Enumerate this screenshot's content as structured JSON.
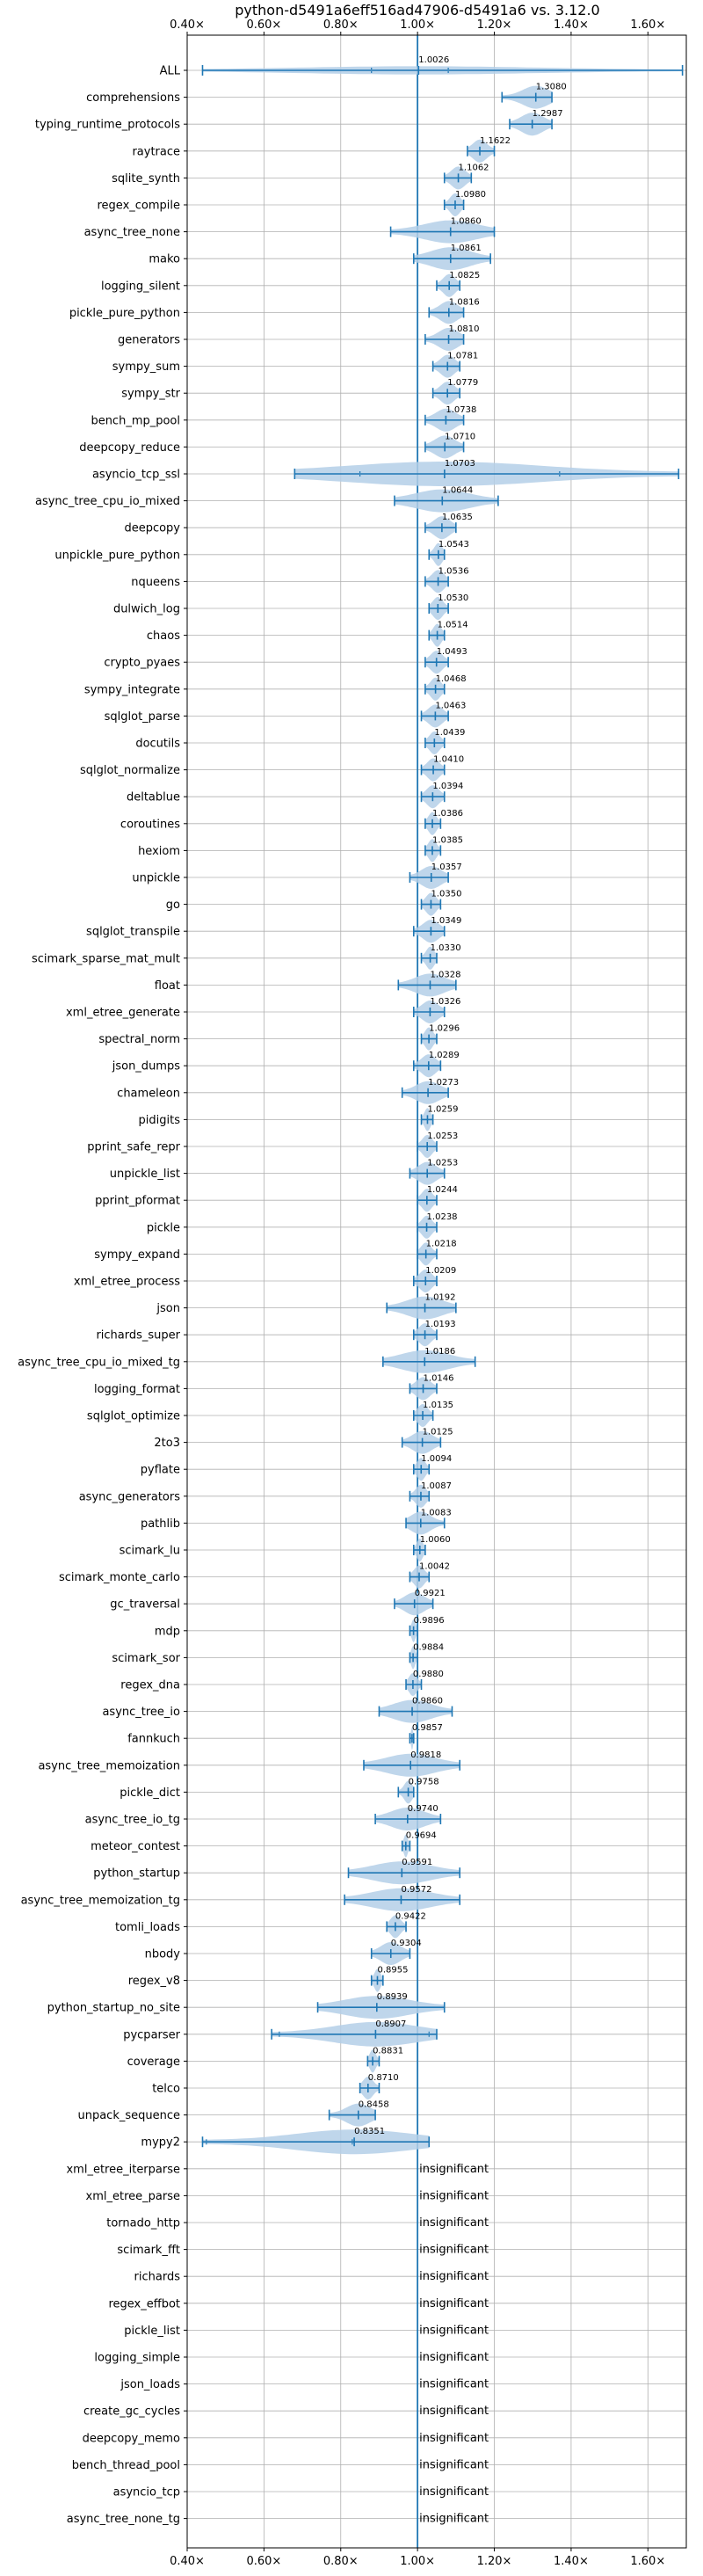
{
  "chart_data": {
    "type": "violin",
    "title": "python-d5491a6eff516ad47906-d5491a6 vs. 3.12.0",
    "xlim": [
      0.4,
      1.7
    ],
    "xticks": [
      "0.40×",
      "0.60×",
      "0.80×",
      "1.00×",
      "1.20×",
      "1.40×",
      "1.60×"
    ],
    "reference_line": 1.0,
    "grid": true,
    "colors": {
      "violin": "#b4cfe8",
      "line": "#1f77b4"
    },
    "insignificant_label": "insignificant",
    "benchmarks": [
      {
        "name": "ALL",
        "value": 1.0026,
        "label": "1.0026",
        "min": 0.44,
        "max": 1.69,
        "q1": 0.88,
        "q3": 1.08,
        "width": 0.1
      },
      {
        "name": "comprehensions",
        "value": 1.308,
        "label": "1.3080",
        "min": 1.22,
        "max": 1.35
      },
      {
        "name": "typing_runtime_protocols",
        "value": 1.2987,
        "label": "1.2987",
        "min": 1.24,
        "max": 1.35
      },
      {
        "name": "raytrace",
        "value": 1.1622,
        "label": "1.1622",
        "min": 1.13,
        "max": 1.2
      },
      {
        "name": "sqlite_synth",
        "value": 1.1062,
        "label": "1.1062",
        "min": 1.07,
        "max": 1.14
      },
      {
        "name": "regex_compile",
        "value": 1.098,
        "label": "1.0980",
        "min": 1.07,
        "max": 1.12
      },
      {
        "name": "async_tree_none",
        "value": 1.086,
        "label": "1.0860",
        "min": 0.93,
        "max": 1.2
      },
      {
        "name": "mako",
        "value": 1.0861,
        "label": "1.0861",
        "min": 0.99,
        "max": 1.19
      },
      {
        "name": "logging_silent",
        "value": 1.0825,
        "label": "1.0825",
        "min": 1.05,
        "max": 1.11
      },
      {
        "name": "pickle_pure_python",
        "value": 1.0816,
        "label": "1.0816",
        "min": 1.03,
        "max": 1.12
      },
      {
        "name": "generators",
        "value": 1.081,
        "label": "1.0810",
        "min": 1.02,
        "max": 1.12
      },
      {
        "name": "sympy_sum",
        "value": 1.0781,
        "label": "1.0781",
        "min": 1.04,
        "max": 1.11
      },
      {
        "name": "sympy_str",
        "value": 1.0779,
        "label": "1.0779",
        "min": 1.04,
        "max": 1.11
      },
      {
        "name": "bench_mp_pool",
        "value": 1.0738,
        "label": "1.0738",
        "min": 1.02,
        "max": 1.12
      },
      {
        "name": "deepcopy_reduce",
        "value": 1.071,
        "label": "1.0710",
        "min": 1.02,
        "max": 1.12
      },
      {
        "name": "asyncio_tcp_ssl",
        "value": 1.0703,
        "label": "1.0703",
        "min": 0.68,
        "max": 1.68,
        "q1": 0.85,
        "q3": 1.37,
        "width": 0.6
      },
      {
        "name": "async_tree_cpu_io_mixed",
        "value": 1.0644,
        "label": "1.0644",
        "min": 0.94,
        "max": 1.21
      },
      {
        "name": "deepcopy",
        "value": 1.0635,
        "label": "1.0635",
        "min": 1.02,
        "max": 1.1
      },
      {
        "name": "unpickle_pure_python",
        "value": 1.0543,
        "label": "1.0543",
        "min": 1.03,
        "max": 1.07
      },
      {
        "name": "nqueens",
        "value": 1.0536,
        "label": "1.0536",
        "min": 1.02,
        "max": 1.08
      },
      {
        "name": "dulwich_log",
        "value": 1.053,
        "label": "1.0530",
        "min": 1.03,
        "max": 1.08
      },
      {
        "name": "chaos",
        "value": 1.0514,
        "label": "1.0514",
        "min": 1.03,
        "max": 1.07
      },
      {
        "name": "crypto_pyaes",
        "value": 1.0493,
        "label": "1.0493",
        "min": 1.02,
        "max": 1.08
      },
      {
        "name": "sympy_integrate",
        "value": 1.0468,
        "label": "1.0468",
        "min": 1.02,
        "max": 1.07
      },
      {
        "name": "sqlglot_parse",
        "value": 1.0463,
        "label": "1.0463",
        "min": 1.01,
        "max": 1.08
      },
      {
        "name": "docutils",
        "value": 1.0439,
        "label": "1.0439",
        "min": 1.02,
        "max": 1.07
      },
      {
        "name": "sqlglot_normalize",
        "value": 1.041,
        "label": "1.0410",
        "min": 1.01,
        "max": 1.07
      },
      {
        "name": "deltablue",
        "value": 1.0394,
        "label": "1.0394",
        "min": 1.01,
        "max": 1.07
      },
      {
        "name": "coroutines",
        "value": 1.0386,
        "label": "1.0386",
        "min": 1.02,
        "max": 1.06
      },
      {
        "name": "hexiom",
        "value": 1.0385,
        "label": "1.0385",
        "min": 1.02,
        "max": 1.06
      },
      {
        "name": "unpickle",
        "value": 1.0357,
        "label": "1.0357",
        "min": 0.98,
        "max": 1.08
      },
      {
        "name": "go",
        "value": 1.035,
        "label": "1.0350",
        "min": 1.01,
        "max": 1.06
      },
      {
        "name": "sqlglot_transpile",
        "value": 1.0349,
        "label": "1.0349",
        "min": 0.99,
        "max": 1.07
      },
      {
        "name": "scimark_sparse_mat_mult",
        "value": 1.033,
        "label": "1.0330",
        "min": 1.01,
        "max": 1.05
      },
      {
        "name": "float",
        "value": 1.0328,
        "label": "1.0328",
        "min": 0.95,
        "max": 1.1
      },
      {
        "name": "xml_etree_generate",
        "value": 1.0326,
        "label": "1.0326",
        "min": 0.99,
        "max": 1.07
      },
      {
        "name": "spectral_norm",
        "value": 1.0296,
        "label": "1.0296",
        "min": 1.01,
        "max": 1.05
      },
      {
        "name": "json_dumps",
        "value": 1.0289,
        "label": "1.0289",
        "min": 0.99,
        "max": 1.06
      },
      {
        "name": "chameleon",
        "value": 1.0273,
        "label": "1.0273",
        "min": 0.96,
        "max": 1.08
      },
      {
        "name": "pidigits",
        "value": 1.0259,
        "label": "1.0259",
        "min": 1.01,
        "max": 1.04
      },
      {
        "name": "pprint_safe_repr",
        "value": 1.0253,
        "label": "1.0253",
        "min": 1.0,
        "max": 1.05
      },
      {
        "name": "unpickle_list",
        "value": 1.0253,
        "label": "1.0253",
        "min": 0.98,
        "max": 1.07
      },
      {
        "name": "pprint_pformat",
        "value": 1.0244,
        "label": "1.0244",
        "min": 1.0,
        "max": 1.05
      },
      {
        "name": "pickle",
        "value": 1.0238,
        "label": "1.0238",
        "min": 1.0,
        "max": 1.05
      },
      {
        "name": "sympy_expand",
        "value": 1.0218,
        "label": "1.0218",
        "min": 1.0,
        "max": 1.05
      },
      {
        "name": "xml_etree_process",
        "value": 1.0209,
        "label": "1.0209",
        "min": 0.99,
        "max": 1.05
      },
      {
        "name": "json",
        "value": 1.0192,
        "label": "1.0192",
        "min": 0.92,
        "max": 1.1
      },
      {
        "name": "richards_super",
        "value": 1.0193,
        "label": "1.0193",
        "min": 0.99,
        "max": 1.05
      },
      {
        "name": "async_tree_cpu_io_mixed_tg",
        "value": 1.0186,
        "label": "1.0186",
        "min": 0.91,
        "max": 1.15
      },
      {
        "name": "logging_format",
        "value": 1.0146,
        "label": "1.0146",
        "min": 0.98,
        "max": 1.05
      },
      {
        "name": "sqlglot_optimize",
        "value": 1.0135,
        "label": "1.0135",
        "min": 0.99,
        "max": 1.04
      },
      {
        "name": "2to3",
        "value": 1.0125,
        "label": "1.0125",
        "min": 0.96,
        "max": 1.06
      },
      {
        "name": "pyflate",
        "value": 1.0094,
        "label": "1.0094",
        "min": 0.99,
        "max": 1.03
      },
      {
        "name": "async_generators",
        "value": 1.0087,
        "label": "1.0087",
        "min": 0.98,
        "max": 1.03
      },
      {
        "name": "pathlib",
        "value": 1.0083,
        "label": "1.0083",
        "min": 0.97,
        "max": 1.07
      },
      {
        "name": "scimark_lu",
        "value": 1.006,
        "label": "1.0060",
        "min": 0.99,
        "max": 1.02
      },
      {
        "name": "scimark_monte_carlo",
        "value": 1.0042,
        "label": "1.0042",
        "min": 0.98,
        "max": 1.03
      },
      {
        "name": "gc_traversal",
        "value": 0.9921,
        "label": "0.9921",
        "min": 0.94,
        "max": 1.04
      },
      {
        "name": "mdp",
        "value": 0.9896,
        "label": "0.9896",
        "min": 0.98,
        "max": 1.0
      },
      {
        "name": "scimark_sor",
        "value": 0.9884,
        "label": "0.9884",
        "min": 0.98,
        "max": 1.0
      },
      {
        "name": "regex_dna",
        "value": 0.988,
        "label": "0.9880",
        "min": 0.97,
        "max": 1.01
      },
      {
        "name": "async_tree_io",
        "value": 0.986,
        "label": "0.9860",
        "min": 0.9,
        "max": 1.09
      },
      {
        "name": "fannkuch",
        "value": 0.9857,
        "label": "0.9857",
        "min": 0.98,
        "max": 0.99
      },
      {
        "name": "async_tree_memoization",
        "value": 0.9818,
        "label": "0.9818",
        "min": 0.86,
        "max": 1.11
      },
      {
        "name": "pickle_dict",
        "value": 0.9758,
        "label": "0.9758",
        "min": 0.95,
        "max": 0.99
      },
      {
        "name": "async_tree_io_tg",
        "value": 0.974,
        "label": "0.9740",
        "min": 0.89,
        "max": 1.06
      },
      {
        "name": "meteor_contest",
        "value": 0.9694,
        "label": "0.9694",
        "min": 0.96,
        "max": 0.98
      },
      {
        "name": "python_startup",
        "value": 0.9591,
        "label": "0.9591",
        "min": 0.82,
        "max": 1.11
      },
      {
        "name": "async_tree_memoization_tg",
        "value": 0.9572,
        "label": "0.9572",
        "min": 0.81,
        "max": 1.11
      },
      {
        "name": "tomli_loads",
        "value": 0.9422,
        "label": "0.9422",
        "min": 0.92,
        "max": 0.97
      },
      {
        "name": "nbody",
        "value": 0.9304,
        "label": "0.9304",
        "min": 0.88,
        "max": 0.98
      },
      {
        "name": "regex_v8",
        "value": 0.8955,
        "label": "0.8955",
        "min": 0.88,
        "max": 0.91
      },
      {
        "name": "python_startup_no_site",
        "value": 0.8939,
        "label": "0.8939",
        "min": 0.74,
        "max": 1.07
      },
      {
        "name": "pycparser",
        "value": 0.8907,
        "label": "0.8907",
        "min": 0.62,
        "max": 1.05,
        "q1": 0.64,
        "q3": 1.03,
        "width": 0.3
      },
      {
        "name": "coverage",
        "value": 0.8831,
        "label": "0.8831",
        "min": 0.87,
        "max": 0.9
      },
      {
        "name": "telco",
        "value": 0.871,
        "label": "0.8710",
        "min": 0.85,
        "max": 0.9
      },
      {
        "name": "unpack_sequence",
        "value": 0.8458,
        "label": "0.8458",
        "min": 0.77,
        "max": 0.89
      },
      {
        "name": "mypy2",
        "value": 0.8351,
        "label": "0.8351",
        "min": 0.44,
        "max": 1.03,
        "q1": 0.45,
        "q3": 0.83,
        "width": 0.35
      },
      {
        "name": "xml_etree_iterparse",
        "value": null
      },
      {
        "name": "xml_etree_parse",
        "value": null
      },
      {
        "name": "tornado_http",
        "value": null
      },
      {
        "name": "scimark_fft",
        "value": null
      },
      {
        "name": "richards",
        "value": null
      },
      {
        "name": "regex_effbot",
        "value": null
      },
      {
        "name": "pickle_list",
        "value": null
      },
      {
        "name": "logging_simple",
        "value": null
      },
      {
        "name": "json_loads",
        "value": null
      },
      {
        "name": "create_gc_cycles",
        "value": null
      },
      {
        "name": "deepcopy_memo",
        "value": null
      },
      {
        "name": "bench_thread_pool",
        "value": null
      },
      {
        "name": "asyncio_tcp",
        "value": null
      },
      {
        "name": "async_tree_none_tg",
        "value": null
      }
    ]
  }
}
